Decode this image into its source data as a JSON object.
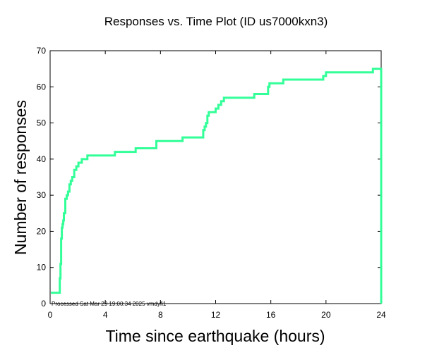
{
  "chart_data": {
    "type": "line",
    "title": "Responses vs. Time Plot (ID us7000kxn3)",
    "xlabel": "Time since earthquake (hours)",
    "ylabel": "Number of responses",
    "xlim": [
      0,
      24
    ],
    "ylim": [
      0,
      70
    ],
    "xticks": [
      0,
      4,
      8,
      12,
      16,
      20,
      24
    ],
    "yticks": [
      0,
      10,
      20,
      30,
      40,
      50,
      60,
      70
    ],
    "grid": false,
    "line_color": "#33ff99",
    "annotation": "Processed Sat Mar 29 19:00:34 2025 vmdyfi1",
    "series": [
      {
        "name": "Responses",
        "step": "post",
        "x": [
          0.05,
          0.1,
          0.7,
          0.75,
          0.8,
          0.85,
          0.9,
          0.95,
          1.0,
          1.1,
          1.2,
          1.3,
          1.4,
          1.5,
          1.6,
          1.75,
          1.9,
          2.05,
          2.3,
          2.7,
          3.2,
          4.7,
          6.2,
          7.7,
          9.6,
          11.1,
          11.2,
          11.3,
          11.4,
          11.5,
          12.0,
          12.2,
          12.4,
          12.6,
          14.8,
          15.8,
          15.9,
          16.9,
          19.8,
          20.0,
          23.4,
          23.98,
          24.0
        ],
        "y": [
          3,
          3,
          7,
          11,
          18,
          21,
          22,
          23,
          25,
          29,
          30,
          31,
          33,
          34,
          35,
          37,
          38,
          39,
          40,
          41,
          41,
          42,
          43,
          45,
          46,
          48,
          49,
          50,
          52,
          53,
          54,
          55,
          56,
          57,
          58,
          60,
          61,
          62,
          63,
          64,
          65,
          65,
          0
        ]
      }
    ]
  }
}
